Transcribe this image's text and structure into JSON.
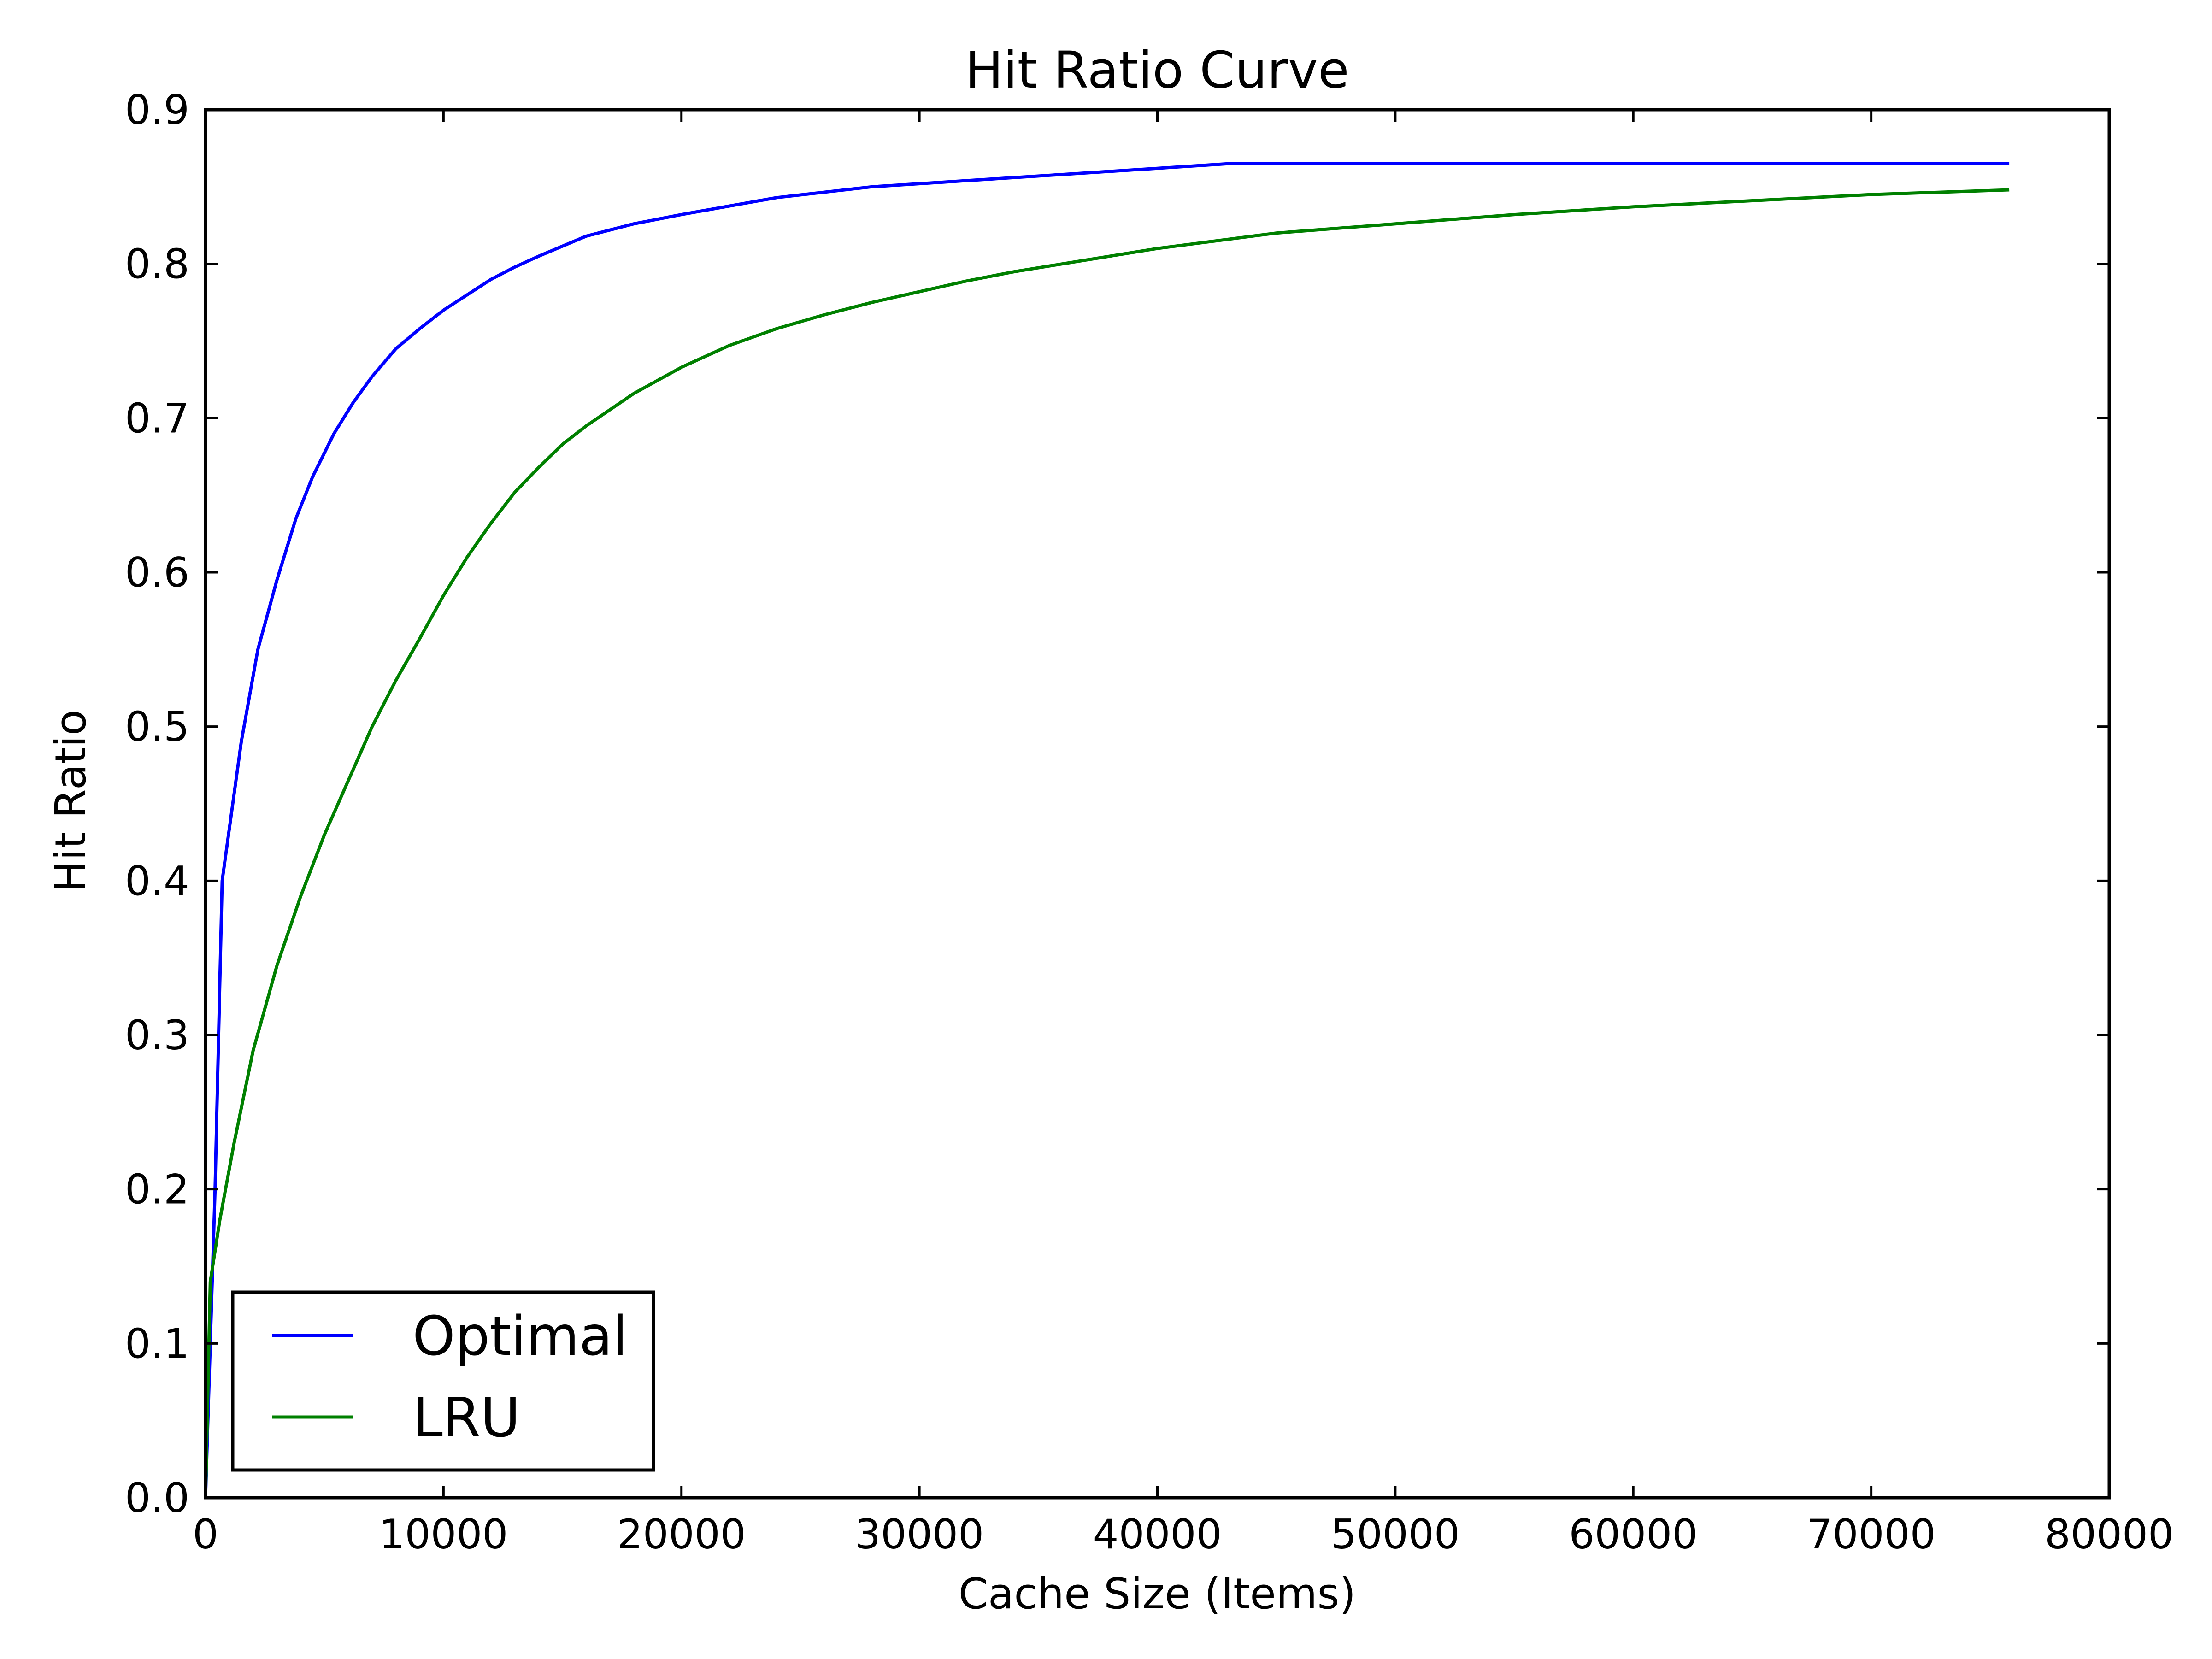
{
  "chart_data": {
    "type": "line",
    "title": "Hit Ratio Curve",
    "xlabel": "Cache Size (Items)",
    "ylabel": "Hit Ratio",
    "xlim": [
      0,
      80000
    ],
    "ylim": [
      0.0,
      0.9
    ],
    "xticks": [
      "0",
      "10000",
      "20000",
      "30000",
      "40000",
      "50000",
      "60000",
      "70000",
      "80000"
    ],
    "yticks": [
      "0.0",
      "0.1",
      "0.2",
      "0.3",
      "0.4",
      "0.5",
      "0.6",
      "0.7",
      "0.8",
      "0.9"
    ],
    "grid": false,
    "legend_position": "lower-left",
    "series": [
      {
        "name": "Optimal",
        "color": "#0000ff",
        "x": [
          0,
          200,
          400,
          700,
          1500,
          2200,
          3000,
          3800,
          4500,
          5400,
          6200,
          7000,
          8000,
          9000,
          10000,
          11000,
          12000,
          13000,
          14000,
          16000,
          18000,
          20000,
          24000,
          28000,
          32000,
          36000,
          40000,
          43000,
          50000,
          60000,
          70000,
          75800
        ],
        "y": [
          0.0,
          0.1,
          0.2,
          0.4,
          0.49,
          0.55,
          0.595,
          0.635,
          0.662,
          0.69,
          0.71,
          0.727,
          0.745,
          0.758,
          0.77,
          0.78,
          0.79,
          0.798,
          0.805,
          0.818,
          0.826,
          0.832,
          0.843,
          0.85,
          0.854,
          0.858,
          0.862,
          0.865,
          0.865,
          0.865,
          0.865,
          0.865
        ]
      },
      {
        "name": "LRU",
        "color": "#008000",
        "x": [
          0,
          200,
          600,
          1200,
          2000,
          3000,
          4000,
          5000,
          6000,
          7000,
          8000,
          9000,
          10000,
          11000,
          12000,
          13000,
          14000,
          15000,
          16000,
          18000,
          20000,
          22000,
          24000,
          26000,
          28000,
          30000,
          32000,
          34000,
          36000,
          38000,
          40000,
          45000,
          50000,
          55000,
          60000,
          65000,
          70000,
          75800
        ],
        "y": [
          0.0,
          0.14,
          0.18,
          0.23,
          0.29,
          0.345,
          0.39,
          0.43,
          0.465,
          0.5,
          0.53,
          0.557,
          0.585,
          0.61,
          0.632,
          0.652,
          0.668,
          0.683,
          0.695,
          0.716,
          0.733,
          0.747,
          0.758,
          0.767,
          0.775,
          0.782,
          0.789,
          0.795,
          0.8,
          0.805,
          0.81,
          0.82,
          0.826,
          0.832,
          0.837,
          0.841,
          0.845,
          0.848
        ]
      }
    ]
  }
}
